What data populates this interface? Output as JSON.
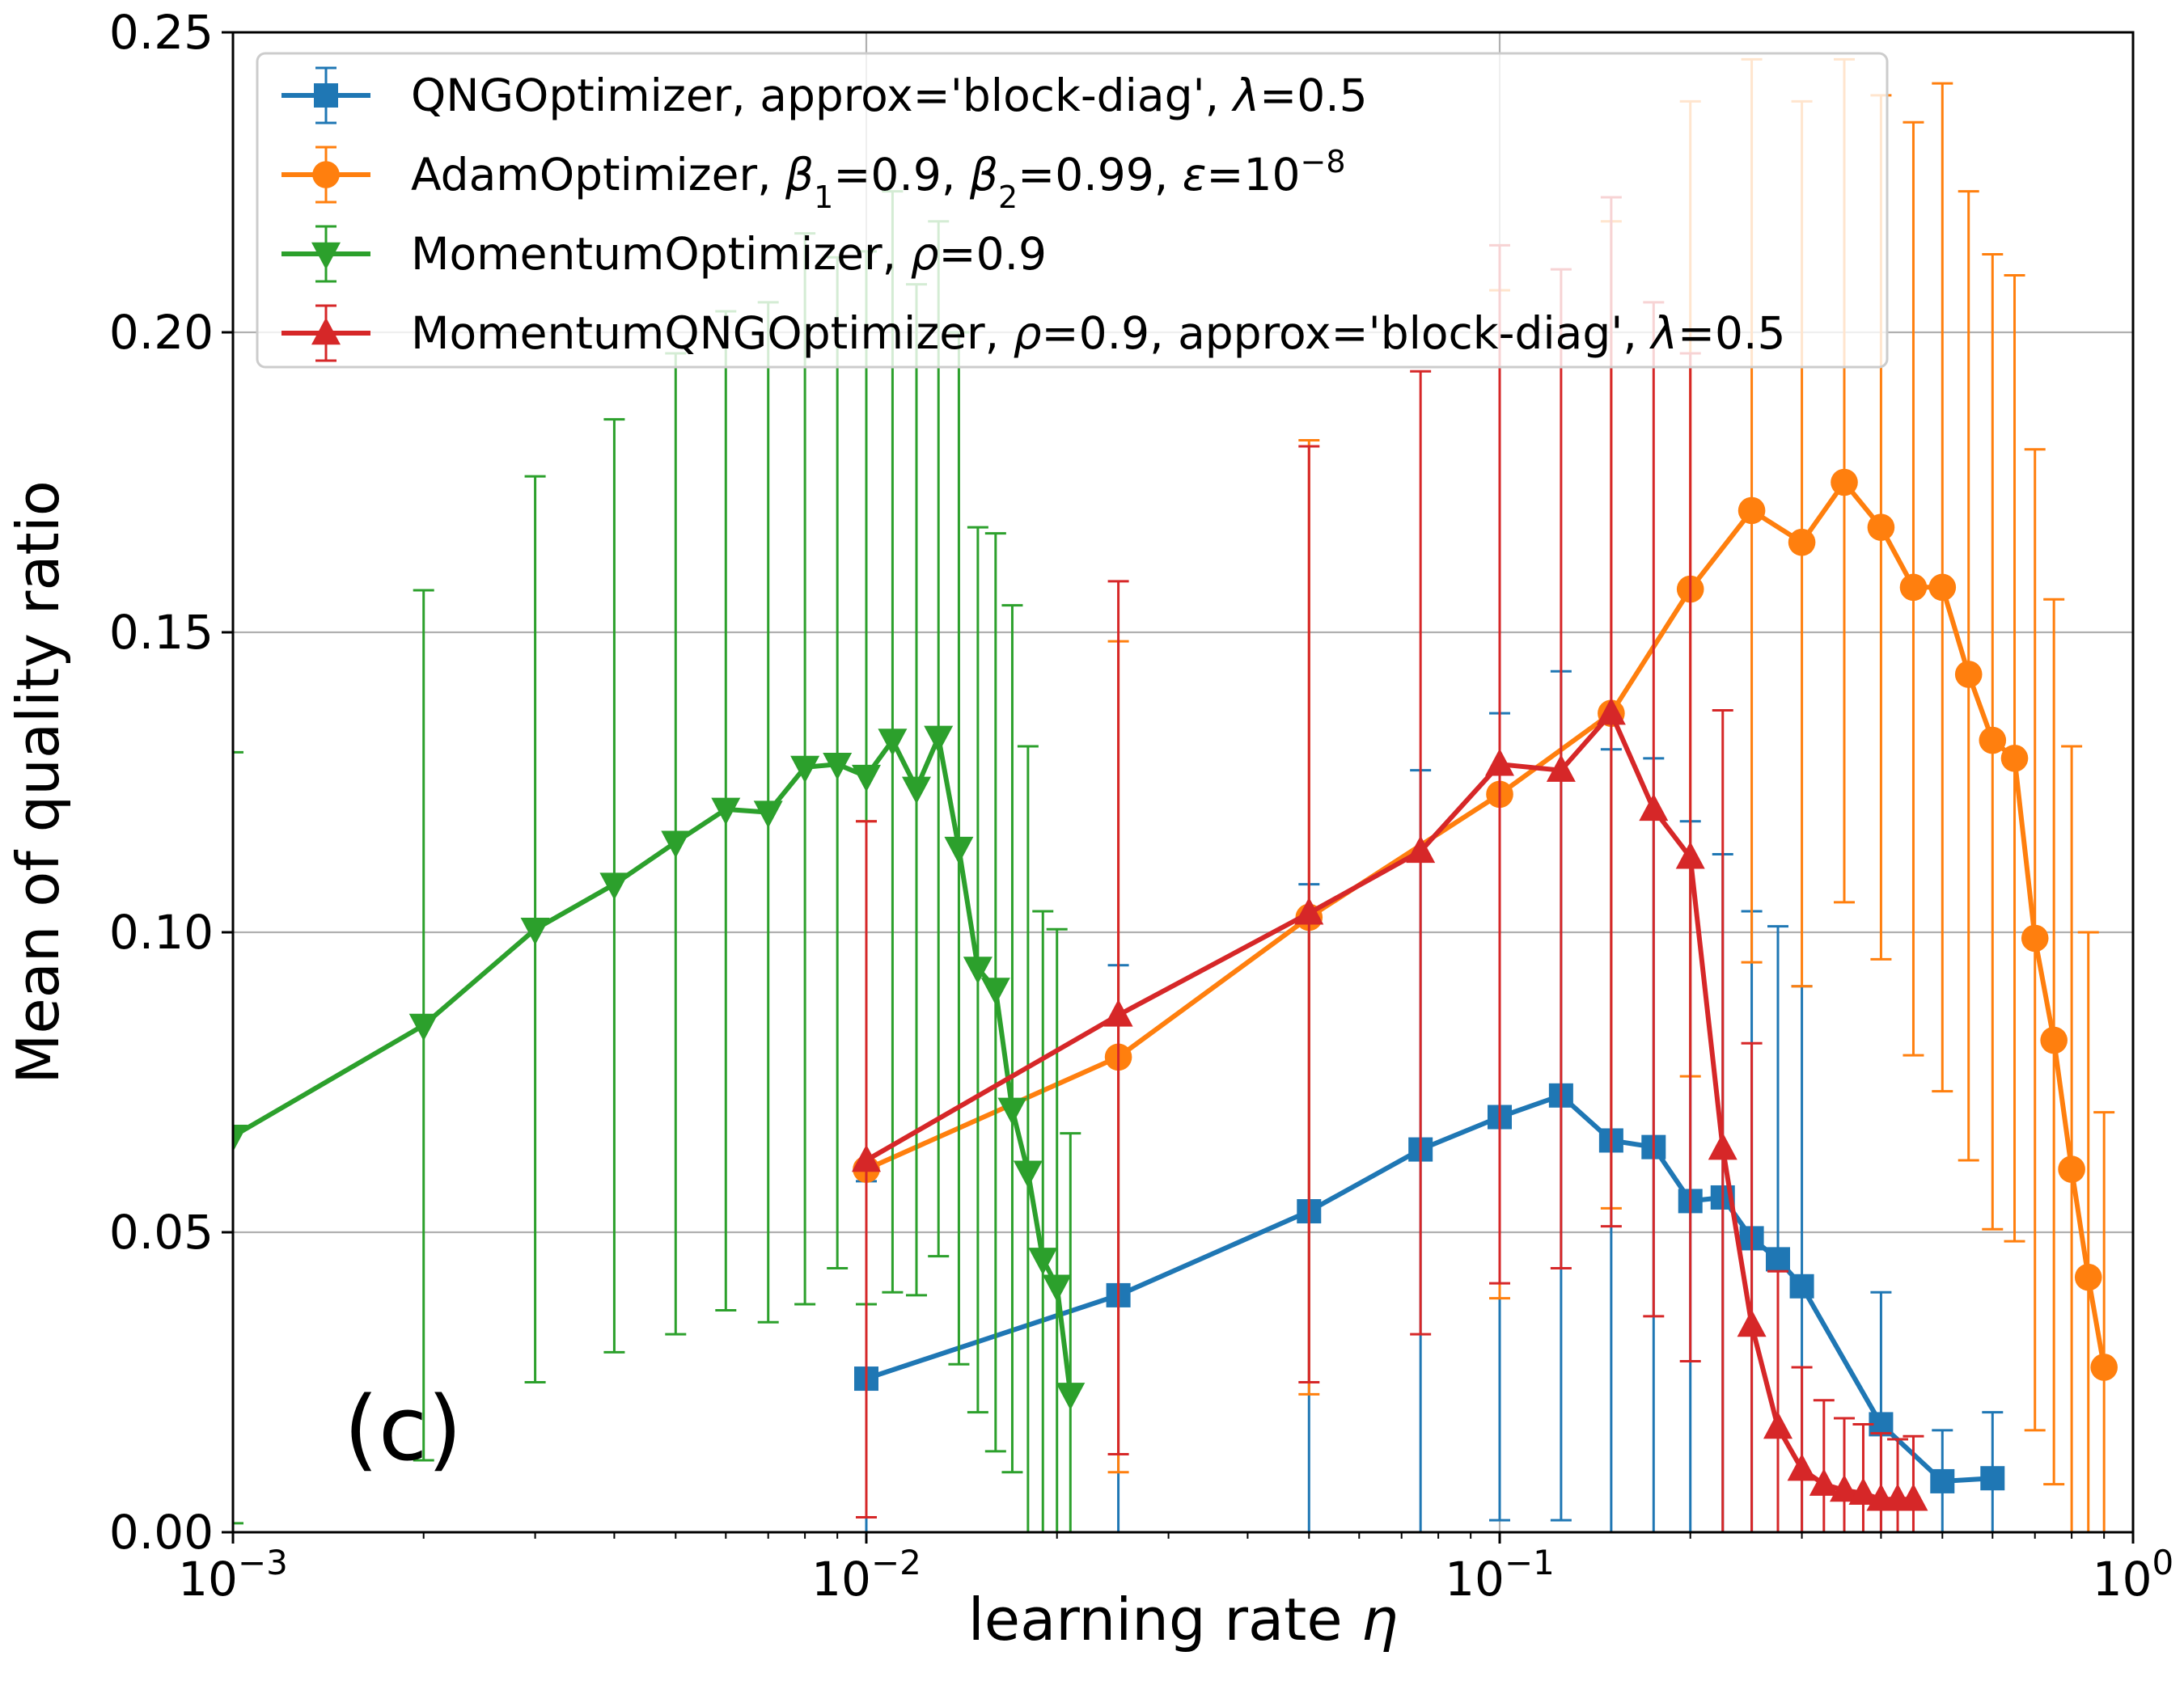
{
  "chart_data": {
    "type": "line",
    "xscale": "log",
    "xlim": [
      0.001,
      1
    ],
    "ylim": [
      0.0,
      0.25
    ],
    "grid": true,
    "legend_position": "upper-left",
    "xlabel": "learning rate η",
    "ylabel": "Mean of quality ratio",
    "annotation": "(c)",
    "x_ticks": [
      {
        "value": 0.001,
        "base": "10",
        "exp": "−3"
      },
      {
        "value": 0.01,
        "base": "10",
        "exp": "−2"
      },
      {
        "value": 0.1,
        "base": "10",
        "exp": "−1"
      },
      {
        "value": 1,
        "base": "10",
        "exp": "0"
      }
    ],
    "y_ticks": [
      {
        "value": 0.0,
        "label": "0.00"
      },
      {
        "value": 0.05,
        "label": "0.05"
      },
      {
        "value": 0.1,
        "label": "0.10"
      },
      {
        "value": 0.15,
        "label": "0.15"
      },
      {
        "value": 0.2,
        "label": "0.20"
      },
      {
        "value": 0.25,
        "label": "0.25"
      }
    ],
    "series": [
      {
        "name": "QNGOptimizer, approx='block-diag', λ=0.5",
        "legend": [
          {
            "t": "QNGOptimizer, approx='block-diag', "
          },
          {
            "t": "λ",
            "i": true
          },
          {
            "t": "=0.5"
          }
        ],
        "color": "#1f77b4",
        "marker": "square",
        "points": [
          {
            "x": 0.01,
            "y": 0.0256,
            "lo": 0.0,
            "hi": 0.0585
          },
          {
            "x": 0.025,
            "y": 0.0395,
            "lo": 0.0,
            "hi": 0.0945
          },
          {
            "x": 0.05,
            "y": 0.0535,
            "lo": 0.0,
            "hi": 0.108
          },
          {
            "x": 0.075,
            "y": 0.0638,
            "lo": 0.0,
            "hi": 0.127
          },
          {
            "x": 0.1,
            "y": 0.0692,
            "lo": 0.002,
            "hi": 0.1365
          },
          {
            "x": 0.125,
            "y": 0.0728,
            "lo": 0.002,
            "hi": 0.1435
          },
          {
            "x": 0.15,
            "y": 0.0653,
            "lo": 0.0,
            "hi": 0.1305
          },
          {
            "x": 0.175,
            "y": 0.0642,
            "lo": 0.0,
            "hi": 0.129
          },
          {
            "x": 0.2,
            "y": 0.0552,
            "lo": 0.0,
            "hi": 0.1185
          },
          {
            "x": 0.225,
            "y": 0.0558,
            "lo": 0.0,
            "hi": 0.113
          },
          {
            "x": 0.25,
            "y": 0.049,
            "lo": 0.0,
            "hi": 0.1035
          },
          {
            "x": 0.275,
            "y": 0.0455,
            "lo": 0.0,
            "hi": 0.101
          },
          {
            "x": 0.3,
            "y": 0.041,
            "lo": 0.0,
            "hi": 0.091
          },
          {
            "x": 0.4,
            "y": 0.018,
            "lo": 0.0,
            "hi": 0.04
          },
          {
            "x": 0.5,
            "y": 0.0085,
            "lo": 0.0,
            "hi": 0.017
          },
          {
            "x": 0.6,
            "y": 0.009,
            "lo": 0.0,
            "hi": 0.02
          }
        ]
      },
      {
        "name": "AdamOptimizer, β1=0.9, β2=0.99, ε=10−8",
        "legend": [
          {
            "t": "AdamOptimizer, "
          },
          {
            "t": "β",
            "i": true
          },
          {
            "t": "1",
            "sub": true
          },
          {
            "t": "=0.9, "
          },
          {
            "t": "β",
            "i": true
          },
          {
            "t": "2",
            "sub": true
          },
          {
            "t": "=0.99, "
          },
          {
            "t": "ε",
            "i": true
          },
          {
            "t": "=10"
          },
          {
            "t": "−8",
            "sup": true
          }
        ],
        "color": "#ff7f0e",
        "marker": "circle",
        "points": [
          {
            "x": 0.01,
            "y": 0.0605,
            "lo": 0.0025,
            "hi": 0.1185
          },
          {
            "x": 0.025,
            "y": 0.0792,
            "lo": 0.01,
            "hi": 0.1485
          },
          {
            "x": 0.05,
            "y": 0.1025,
            "lo": 0.023,
            "hi": 0.182
          },
          {
            "x": 0.1,
            "y": 0.123,
            "lo": 0.039,
            "hi": 0.207
          },
          {
            "x": 0.15,
            "y": 0.1365,
            "lo": 0.054,
            "hi": 0.2185
          },
          {
            "x": 0.2,
            "y": 0.1572,
            "lo": 0.076,
            "hi": 0.2385
          },
          {
            "x": 0.25,
            "y": 0.1703,
            "lo": 0.095,
            "hi": 0.2455
          },
          {
            "x": 0.3,
            "y": 0.165,
            "lo": 0.091,
            "hi": 0.2385
          },
          {
            "x": 0.35,
            "y": 0.175,
            "lo": 0.105,
            "hi": 0.2455
          },
          {
            "x": 0.4,
            "y": 0.1675,
            "lo": 0.0955,
            "hi": 0.2395
          },
          {
            "x": 0.45,
            "y": 0.1575,
            "lo": 0.0795,
            "hi": 0.235
          },
          {
            "x": 0.5,
            "y": 0.1575,
            "lo": 0.0735,
            "hi": 0.2415
          },
          {
            "x": 0.55,
            "y": 0.143,
            "lo": 0.062,
            "hi": 0.2235
          },
          {
            "x": 0.6,
            "y": 0.132,
            "lo": 0.0505,
            "hi": 0.213
          },
          {
            "x": 0.65,
            "y": 0.129,
            "lo": 0.0485,
            "hi": 0.2095
          },
          {
            "x": 0.7,
            "y": 0.099,
            "lo": 0.017,
            "hi": 0.1805
          },
          {
            "x": 0.75,
            "y": 0.082,
            "lo": 0.008,
            "hi": 0.1555
          },
          {
            "x": 0.8,
            "y": 0.0605,
            "lo": 0.0,
            "hi": 0.131
          },
          {
            "x": 0.85,
            "y": 0.0425,
            "lo": 0.0,
            "hi": 0.1
          },
          {
            "x": 0.9,
            "y": 0.0275,
            "lo": 0.0,
            "hi": 0.07
          }
        ]
      },
      {
        "name": "MomentumOptimizer, ρ=0.9",
        "legend": [
          {
            "t": "MomentumOptimizer, "
          },
          {
            "t": "ρ",
            "i": true
          },
          {
            "t": "=0.9"
          }
        ],
        "color": "#2ca02c",
        "marker": "triangle-down",
        "points": [
          {
            "x": 0.001,
            "y": 0.066,
            "lo": 0.0015,
            "hi": 0.13
          },
          {
            "x": 0.002,
            "y": 0.0845,
            "lo": 0.012,
            "hi": 0.157
          },
          {
            "x": 0.003,
            "y": 0.1005,
            "lo": 0.025,
            "hi": 0.176
          },
          {
            "x": 0.004,
            "y": 0.108,
            "lo": 0.03,
            "hi": 0.1855
          },
          {
            "x": 0.005,
            "y": 0.115,
            "lo": 0.033,
            "hi": 0.1965
          },
          {
            "x": 0.006,
            "y": 0.1205,
            "lo": 0.037,
            "hi": 0.2035
          },
          {
            "x": 0.007,
            "y": 0.12,
            "lo": 0.035,
            "hi": 0.205
          },
          {
            "x": 0.008,
            "y": 0.1275,
            "lo": 0.038,
            "hi": 0.2165
          },
          {
            "x": 0.009,
            "y": 0.128,
            "lo": 0.044,
            "hi": 0.2125
          },
          {
            "x": 0.01,
            "y": 0.126,
            "lo": 0.038,
            "hi": 0.2135
          },
          {
            "x": 0.011,
            "y": 0.132,
            "lo": 0.04,
            "hi": 0.2235
          },
          {
            "x": 0.012,
            "y": 0.124,
            "lo": 0.0395,
            "hi": 0.208
          },
          {
            "x": 0.013,
            "y": 0.1325,
            "lo": 0.046,
            "hi": 0.2185
          },
          {
            "x": 0.014,
            "y": 0.114,
            "lo": 0.028,
            "hi": 0.2
          },
          {
            "x": 0.015,
            "y": 0.094,
            "lo": 0.02,
            "hi": 0.1675
          },
          {
            "x": 0.016,
            "y": 0.0905,
            "lo": 0.0135,
            "hi": 0.1665
          },
          {
            "x": 0.017,
            "y": 0.0705,
            "lo": 0.01,
            "hi": 0.1545
          },
          {
            "x": 0.018,
            "y": 0.06,
            "lo": 0.0,
            "hi": 0.131
          },
          {
            "x": 0.019,
            "y": 0.0455,
            "lo": 0.0,
            "hi": 0.1035
          },
          {
            "x": 0.02,
            "y": 0.041,
            "lo": 0.0,
            "hi": 0.1005
          },
          {
            "x": 0.021,
            "y": 0.023,
            "lo": 0.0,
            "hi": 0.0665
          }
        ]
      },
      {
        "name": "MomentumQNGOptimizer, ρ=0.9, approx='block-diag', λ=0.5",
        "legend": [
          {
            "t": "MomentumQNGOptimizer, "
          },
          {
            "t": "ρ",
            "i": true
          },
          {
            "t": "=0.9, approx='block-diag', "
          },
          {
            "t": "λ",
            "i": true
          },
          {
            "t": "=0.5"
          }
        ],
        "color": "#d62728",
        "marker": "triangle-up",
        "points": [
          {
            "x": 0.01,
            "y": 0.062,
            "lo": 0.0025,
            "hi": 0.1185
          },
          {
            "x": 0.025,
            "y": 0.0862,
            "lo": 0.013,
            "hi": 0.1585
          },
          {
            "x": 0.05,
            "y": 0.1032,
            "lo": 0.025,
            "hi": 0.181
          },
          {
            "x": 0.075,
            "y": 0.1135,
            "lo": 0.033,
            "hi": 0.1935
          },
          {
            "x": 0.1,
            "y": 0.128,
            "lo": 0.0415,
            "hi": 0.2145
          },
          {
            "x": 0.125,
            "y": 0.127,
            "lo": 0.044,
            "hi": 0.2105
          },
          {
            "x": 0.15,
            "y": 0.1365,
            "lo": 0.051,
            "hi": 0.2225
          },
          {
            "x": 0.175,
            "y": 0.1205,
            "lo": 0.036,
            "hi": 0.205
          },
          {
            "x": 0.2,
            "y": 0.1125,
            "lo": 0.0285,
            "hi": 0.1965
          },
          {
            "x": 0.225,
            "y": 0.064,
            "lo": 0.0,
            "hi": 0.137
          },
          {
            "x": 0.25,
            "y": 0.0345,
            "lo": 0.0,
            "hi": 0.0815
          },
          {
            "x": 0.275,
            "y": 0.0175,
            "lo": 0.0,
            "hi": 0.0435
          },
          {
            "x": 0.3,
            "y": 0.0105,
            "lo": 0.0,
            "hi": 0.0275
          },
          {
            "x": 0.325,
            "y": 0.008,
            "lo": 0.0,
            "hi": 0.022
          },
          {
            "x": 0.35,
            "y": 0.007,
            "lo": 0.0,
            "hi": 0.019
          },
          {
            "x": 0.375,
            "y": 0.0065,
            "lo": 0.0,
            "hi": 0.018
          },
          {
            "x": 0.4,
            "y": 0.0055,
            "lo": 0.0,
            "hi": 0.0165
          },
          {
            "x": 0.425,
            "y": 0.0055,
            "lo": 0.0,
            "hi": 0.0155
          },
          {
            "x": 0.45,
            "y": 0.0055,
            "lo": 0.0,
            "hi": 0.016
          }
        ]
      }
    ]
  }
}
